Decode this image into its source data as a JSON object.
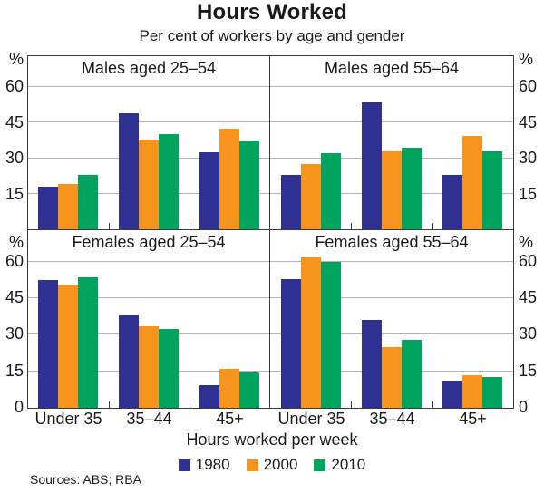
{
  "title": "Hours Worked",
  "subtitle": "Per cent of workers by age and gender",
  "chart_data": {
    "type": "bar",
    "categories": [
      "Under 35",
      "35–44",
      "45+"
    ],
    "xlabel": "Hours worked per week",
    "y_unit": "%",
    "ylim": [
      0,
      73
    ],
    "yticks": [
      15,
      30,
      45,
      60
    ],
    "yticks_bottom_row": [
      0,
      15,
      30,
      45,
      60
    ],
    "grid": true,
    "legend_position": "bottom",
    "legend": [
      {
        "label": "1980",
        "color": "#2E3192"
      },
      {
        "label": "2000",
        "color": "#F7941E"
      },
      {
        "label": "2010",
        "color": "#00A45E"
      }
    ],
    "panels": [
      {
        "title": "Males aged 25–54",
        "series": [
          {
            "name": "1980",
            "values": [
              18,
              49,
              32.5
            ]
          },
          {
            "name": "2000",
            "values": [
              19,
              38,
              42.5
            ]
          },
          {
            "name": "2010",
            "values": [
              23,
              40,
              37
            ]
          }
        ]
      },
      {
        "title": "Males aged 55–64",
        "series": [
          {
            "name": "1980",
            "values": [
              23,
              53.5,
              23
            ]
          },
          {
            "name": "2000",
            "values": [
              27.5,
              33,
              39.5
            ]
          },
          {
            "name": "2010",
            "values": [
              32,
              34.5,
              33
            ]
          }
        ]
      },
      {
        "title": "Females aged 25–54",
        "series": [
          {
            "name": "1980",
            "values": [
              52.5,
              38,
              9.5
            ]
          },
          {
            "name": "2000",
            "values": [
              50.5,
              33.5,
              16
            ]
          },
          {
            "name": "2010",
            "values": [
              53.5,
              32.5,
              14.5
            ]
          }
        ]
      },
      {
        "title": "Females aged 55–64",
        "series": [
          {
            "name": "1980",
            "values": [
              53,
              36,
              11
            ]
          },
          {
            "name": "2000",
            "values": [
              62,
              25,
              13.5
            ]
          },
          {
            "name": "2010",
            "values": [
              60,
              28,
              12.5
            ]
          }
        ]
      }
    ]
  },
  "footer": {
    "sources": "Sources: ABS; RBA"
  }
}
